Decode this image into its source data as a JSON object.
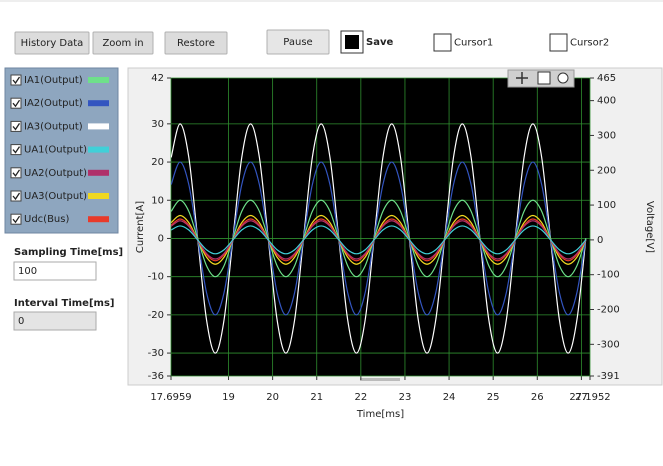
{
  "toolbar": {
    "buttons": [
      "History Data",
      "Zoom in",
      "Restore",
      "Pause"
    ],
    "checkboxes": [
      {
        "label": "Save",
        "checked": true
      },
      {
        "label": "Cursor1",
        "checked": false
      },
      {
        "label": "Cursor2",
        "checked": false
      }
    ]
  },
  "settings": {
    "sampling_label": "Sampling Time[ms]",
    "sampling_value": 100,
    "interval_label": "Interval Time[ms]",
    "interval_value": 0
  },
  "chart_data": {
    "type": "line",
    "xlabel": "Time[ms]",
    "ylabel": "Current[A]",
    "y2label": "Voltage[V]",
    "grid": true,
    "grid_color": "#2f8f2f",
    "background": "#000000",
    "xlim": [
      17.6959,
      27.1952
    ],
    "xticks": [
      17.6959,
      19,
      20,
      21,
      22,
      23,
      24,
      25,
      26,
      27,
      27.1952
    ],
    "ylim": [
      -36,
      42
    ],
    "yticks": [
      42,
      30,
      20,
      10,
      0,
      -10,
      -20,
      -30,
      -36
    ],
    "y2lim": [
      -391,
      465
    ],
    "y2ticks": [
      465,
      400,
      300,
      200,
      100,
      0,
      -100,
      -200,
      -300,
      -391
    ],
    "x": [
      17.7,
      17.9,
      18.1,
      18.3,
      18.5,
      18.7,
      18.9,
      19.1,
      19.3,
      19.5,
      19.7,
      19.9,
      20.1,
      20.3,
      20.5,
      20.7,
      20.9,
      21.1,
      21.3,
      21.5,
      21.7,
      21.9,
      22.1,
      22.3,
      22.5,
      22.7,
      22.9,
      23.1,
      23.3,
      23.5,
      23.7,
      23.9,
      24.1,
      24.3,
      24.5,
      24.7,
      24.9,
      25.1,
      25.3,
      25.5,
      25.7,
      25.9,
      26.1,
      26.3,
      26.5,
      26.7,
      26.9,
      27.1
    ],
    "series": [
      {
        "name": "IA3(Output)",
        "color": "#ffffff",
        "values": [
          21.2,
          30,
          21.2,
          0,
          -21.2,
          -30,
          -21.2,
          0,
          21.2,
          30,
          21.2,
          0,
          -21.2,
          -30,
          -21.2,
          0,
          21.2,
          30,
          21.2,
          0,
          -21.2,
          -30,
          -21.2,
          0,
          21.2,
          30,
          21.2,
          0,
          -21.2,
          -30,
          -21.2,
          0,
          21.2,
          30,
          21.2,
          0,
          -21.2,
          -30,
          -21.2,
          0,
          21.2,
          30,
          21.2,
          0,
          -21.2,
          -30,
          -21.2,
          0
        ]
      },
      {
        "name": "IA2(Output)",
        "color": "#3355c0",
        "values": [
          14.1,
          20,
          14.1,
          0,
          -14.1,
          -20,
          -14.1,
          0,
          14.1,
          20,
          14.1,
          0,
          -14.1,
          -20,
          -14.1,
          0,
          14.1,
          20,
          14.1,
          0,
          -14.1,
          -20,
          -14.1,
          0,
          14.1,
          20,
          14.1,
          0,
          -14.1,
          -20,
          -14.1,
          0,
          14.1,
          20,
          14.1,
          0,
          -14.1,
          -20,
          -14.1,
          0,
          14.1,
          20,
          14.1,
          0,
          -14.1,
          -20,
          -14.1,
          0
        ]
      },
      {
        "name": "IA1(Output)",
        "color": "#6ee08a",
        "values": [
          7.1,
          10,
          7.1,
          0,
          -7.1,
          -10,
          -7.1,
          0,
          7.1,
          10,
          7.1,
          0,
          -7.1,
          -10,
          -7.1,
          0,
          7.1,
          10,
          7.1,
          0,
          -7.1,
          -10,
          -7.1,
          0,
          7.1,
          10,
          7.1,
          0,
          -7.1,
          -10,
          -7.1,
          0,
          7.1,
          10,
          7.1,
          0,
          -7.1,
          -10,
          -7.1,
          0,
          7.1,
          10,
          7.1,
          0,
          -7.1,
          -10,
          -7.1,
          0
        ]
      },
      {
        "name": "UA3(Output)",
        "color": "#f0d820",
        "axis": "y2",
        "values": [
          49.5,
          70,
          49.5,
          0,
          -49.5,
          -70,
          -49.5,
          0,
          49.5,
          70,
          49.5,
          0,
          -49.5,
          -70,
          -49.5,
          0,
          49.5,
          70,
          49.5,
          0,
          -49.5,
          -70,
          -49.5,
          0,
          49.5,
          70,
          49.5,
          0,
          -49.5,
          -70,
          -49.5,
          0,
          49.5,
          70,
          49.5,
          0,
          -49.5,
          -70,
          -49.5,
          0,
          49.5,
          70,
          49.5,
          0,
          -49.5,
          -70,
          -49.5,
          0
        ]
      },
      {
        "name": "Udc(Bus)",
        "color": "#e83a2a",
        "axis": "y2",
        "values": [
          42.4,
          60,
          42.4,
          0,
          -42.4,
          -60,
          -42.4,
          0,
          42.4,
          60,
          42.4,
          0,
          -42.4,
          -60,
          -42.4,
          0,
          42.4,
          60,
          42.4,
          0,
          -42.4,
          -60,
          -42.4,
          0,
          42.4,
          60,
          42.4,
          0,
          -42.4,
          -60,
          -42.4,
          0,
          42.4,
          60,
          42.4,
          0,
          -42.4,
          -60,
          -42.4,
          0,
          42.4,
          60,
          42.4,
          0,
          -42.4,
          -60,
          -42.4,
          0
        ]
      },
      {
        "name": "UA2(Output)",
        "color": "#b0306a",
        "axis": "y2",
        "values": [
          38.9,
          55,
          38.9,
          0,
          -38.9,
          -55,
          -38.9,
          0,
          38.9,
          55,
          38.9,
          0,
          -38.9,
          -55,
          -38.9,
          0,
          38.9,
          55,
          38.9,
          0,
          -38.9,
          -55,
          -38.9,
          0,
          38.9,
          55,
          38.9,
          0,
          -38.9,
          -55,
          -38.9,
          0,
          38.9,
          55,
          38.9,
          0,
          -38.9,
          -55,
          -38.9,
          0,
          38.9,
          55,
          38.9,
          0,
          -38.9,
          -55,
          -38.9,
          0
        ]
      },
      {
        "name": "UA1(Output)",
        "color": "#40d0d8",
        "axis": "y2",
        "values": [
          28.3,
          40,
          28.3,
          0,
          -28.3,
          -40,
          -28.3,
          0,
          28.3,
          40,
          28.3,
          0,
          -28.3,
          -40,
          -28.3,
          0,
          28.3,
          40,
          28.3,
          0,
          -28.3,
          -40,
          -28.3,
          0,
          28.3,
          40,
          28.3,
          0,
          -28.3,
          -40,
          -28.3,
          0,
          28.3,
          40,
          28.3,
          0,
          -28.3,
          -40,
          -28.3,
          0,
          28.3,
          40,
          28.3,
          0,
          -28.3,
          -40,
          -28.3,
          0
        ]
      }
    ]
  }
}
